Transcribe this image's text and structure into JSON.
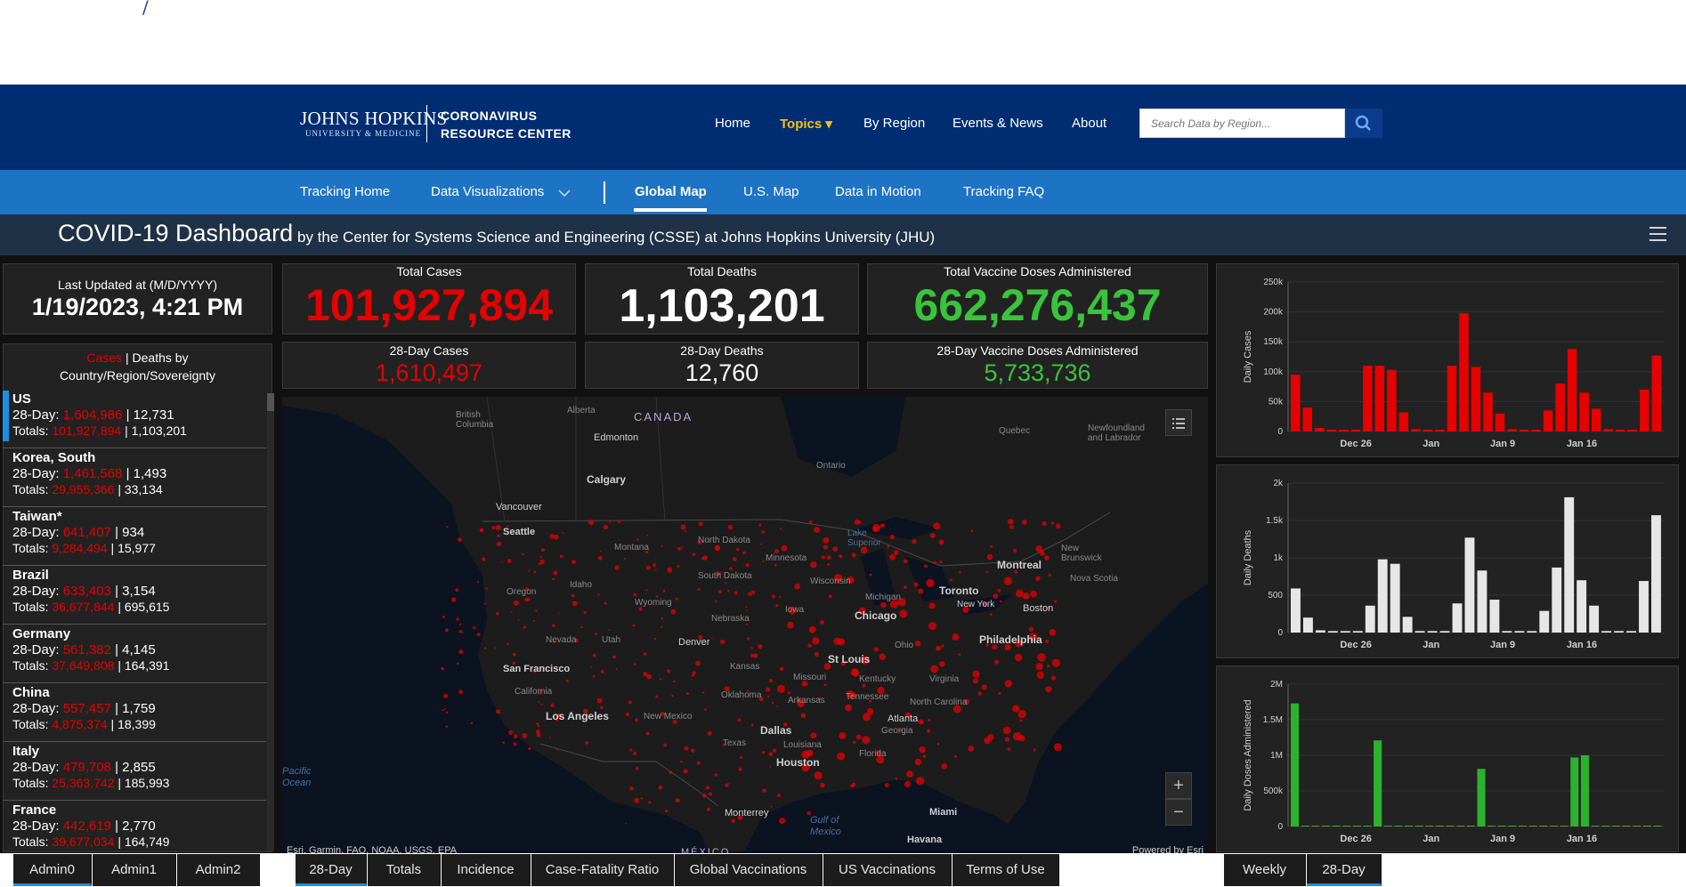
{
  "header": {
    "logo_main": "JOHNS HOPKINS",
    "logo_sub": "UNIVERSITY & MEDICINE",
    "center_line1": "CORONAVIRUS",
    "center_line2": "RESOURCE CENTER",
    "nav": [
      "Home",
      "Topics ▾",
      "By Region",
      "Events & News",
      "About"
    ],
    "search_placeholder": "Search Data by Region..."
  },
  "subnav": {
    "items": [
      "Tracking Home",
      "Data Visualizations",
      "Global Map",
      "U.S. Map",
      "Data in Motion",
      "Tracking FAQ"
    ],
    "active": "Global Map"
  },
  "dashboard": {
    "title": "COVID-19 Dashboard",
    "subtitle": "by the Center for Systems Science and Engineering (CSSE) at Johns Hopkins University (JHU)"
  },
  "stats": {
    "last_updated_label": "Last Updated at (M/D/YYYY)",
    "last_updated_value": "1/19/2023, 4:21 PM",
    "total_cases_label": "Total Cases",
    "total_cases": "101,927,894",
    "total_deaths_label": "Total Deaths",
    "total_deaths": "1,103,201",
    "total_vaccine_label": "Total Vaccine Doses Administered",
    "total_vaccine": "662,276,437",
    "cases28_label": "28-Day Cases",
    "cases28": "1,610,497",
    "deaths28_label": "28-Day Deaths",
    "deaths28": "12,760",
    "vaccine28_label": "28-Day Vaccine Doses Administered",
    "vaccine28": "5,733,736"
  },
  "list": {
    "header_cases": "Cases",
    "header_rest": " | Deaths by",
    "header_line2": "Country/Region/Sovereignty",
    "rows": [
      {
        "name": "US",
        "d28_cases": "1,604,986",
        "d28_deaths": "12,731",
        "tot_cases": "101,927,894",
        "tot_deaths": "1,103,201"
      },
      {
        "name": "Korea, South",
        "d28_cases": "1,461,568",
        "d28_deaths": "1,493",
        "tot_cases": "29,955,366",
        "tot_deaths": "33,134"
      },
      {
        "name": "Taiwan*",
        "d28_cases": "641,407",
        "d28_deaths": "934",
        "tot_cases": "9,284,494",
        "tot_deaths": "15,977"
      },
      {
        "name": "Brazil",
        "d28_cases": "633,403",
        "d28_deaths": "3,154",
        "tot_cases": "36,677,844",
        "tot_deaths": "695,615"
      },
      {
        "name": "Germany",
        "d28_cases": "561,382",
        "d28_deaths": "4,145",
        "tot_cases": "37,649,808",
        "tot_deaths": "164,391"
      },
      {
        "name": "China",
        "d28_cases": "557,457",
        "d28_deaths": "1,759",
        "tot_cases": "4,875,374",
        "tot_deaths": "18,399"
      },
      {
        "name": "Italy",
        "d28_cases": "479,708",
        "d28_deaths": "2,855",
        "tot_cases": "25,363,742",
        "tot_deaths": "185,993"
      },
      {
        "name": "France",
        "d28_cases": "442,619",
        "d28_deaths": "2,770",
        "tot_cases": "39,677,034",
        "tot_deaths": "164,749"
      }
    ],
    "prefix_28": "28-Day: ",
    "prefix_tot": "Totals: "
  },
  "map": {
    "credit": "Esri, Garmin, FAO, NOAA, USGS, EPA",
    "powered": "Powered by Esri",
    "labels": {
      "canada": "CANADA",
      "mexico": "MÉXICO",
      "bc": "British Columbia",
      "alberta": "Alberta",
      "ontario": "Ontario",
      "quebec": "Quebec",
      "newfoundland": "Newfoundland and Labrador",
      "newbrunswick": "New Brunswick",
      "novascotia": "Nova Scotia",
      "montana": "Montana",
      "ndakota": "North Dakota",
      "sdakota": "South Dakota",
      "minnesota": "Minnesota",
      "wisconsin": "Wisconsin",
      "michigan": "Michigan",
      "oregon": "Oregon",
      "idaho": "Idaho",
      "wyoming": "Wyoming",
      "nebraska": "Nebraska",
      "iowa": "Iowa",
      "nevada": "Nevada",
      "utah": "Utah",
      "california": "California",
      "kansas": "Kansas",
      "missouri": "Missouri",
      "kentucky": "Kentucky",
      "virginia": "Virginia",
      "ohio": "Ohio",
      "oklahoma": "Oklahoma",
      "arkansas": "Arkansas",
      "tennessee": "Tennessee",
      "ncarolina": "North Carolina",
      "georgia": "Georgia",
      "newmexico": "New Mexico",
      "texas": "Texas",
      "louisiana": "Louisiana",
      "florida": "Florida",
      "lakesuperior": "Lake Superior"
    },
    "cities": {
      "edmonton": "Edmonton",
      "calgary": "Calgary",
      "vancouver": "Vancouver",
      "seattle": "Seattle",
      "montreal": "Montreal",
      "toronto": "Toronto",
      "newyork": "New York",
      "boston": "Boston",
      "chicago": "Chicago",
      "philadelphia": "Philadelphia",
      "denver": "Denver",
      "sanfrancisco": "San Francisco",
      "losangeles": "Los Angeles",
      "stlouis": "St Louis",
      "atlanta": "Atlanta",
      "dallas": "Dallas",
      "houston": "Houston",
      "monterrey": "Monterrey",
      "miami": "Miami",
      "havana": "Havana"
    },
    "oceans": {
      "pacific": "Pacific Ocean",
      "gulf": "Gulf of Mexico"
    }
  },
  "charts": {
    "cases_ylabel": "Daily Cases",
    "deaths_ylabel": "Daily Deaths",
    "vaccine_ylabel": "Daily Doses Administered"
  },
  "chart_data": [
    {
      "type": "bar",
      "ylabel": "Daily Cases",
      "ylim": [
        0,
        250000
      ],
      "yticks": [
        "0",
        "50k",
        "100k",
        "150k",
        "200k",
        "250k"
      ],
      "xticks": [
        "Dec 26",
        "Jan",
        "Jan 9",
        "Jan 16"
      ],
      "color": "#e60000",
      "values": [
        95000,
        40000,
        6000,
        3000,
        3000,
        3000,
        110000,
        110000,
        103000,
        32000,
        4000,
        3000,
        3000,
        110000,
        198000,
        108000,
        65000,
        30000,
        4000,
        3000,
        3000,
        35000,
        80000,
        138000,
        65000,
        38000,
        4000,
        3000,
        3000,
        70000,
        127000
      ]
    },
    {
      "type": "bar",
      "ylabel": "Daily Deaths",
      "ylim": [
        0,
        2000
      ],
      "yticks": [
        "0",
        "500",
        "1k",
        "1.5k",
        "2k"
      ],
      "xticks": [
        "Dec 26",
        "Jan",
        "Jan 9",
        "Jan 16"
      ],
      "color": "#e6e6e6",
      "values": [
        590,
        200,
        30,
        20,
        20,
        20,
        360,
        980,
        920,
        210,
        20,
        20,
        20,
        390,
        1270,
        830,
        440,
        20,
        20,
        20,
        290,
        870,
        1810,
        700,
        360,
        20,
        20,
        20,
        690,
        1570
      ]
    },
    {
      "type": "bar",
      "ylabel": "Daily Doses Administered",
      "ylim": [
        0,
        2000000
      ],
      "yticks": [
        "0",
        "500k",
        "1M",
        "1.5M",
        "2M"
      ],
      "xticks": [
        "Dec 26",
        "Jan",
        "Jan 9",
        "Jan 16"
      ],
      "color": "#2db22d",
      "values": [
        1730000,
        0,
        0,
        0,
        0,
        0,
        0,
        0,
        1210000,
        0,
        0,
        0,
        0,
        0,
        0,
        0,
        0,
        0,
        810000,
        0,
        0,
        0,
        0,
        0,
        0,
        0,
        0,
        970000,
        1000000,
        0,
        0,
        0,
        0,
        0,
        0,
        0
      ]
    }
  ],
  "bottom_tabs": {
    "left": [
      "Admin0",
      "Admin1",
      "Admin2"
    ],
    "center": [
      "28-Day",
      "Totals",
      "Incidence",
      "Case-Fatality Ratio",
      "Global Vaccinations",
      "US Vaccinations",
      "Terms of Use"
    ],
    "right": [
      "Weekly",
      "28-Day"
    ]
  }
}
